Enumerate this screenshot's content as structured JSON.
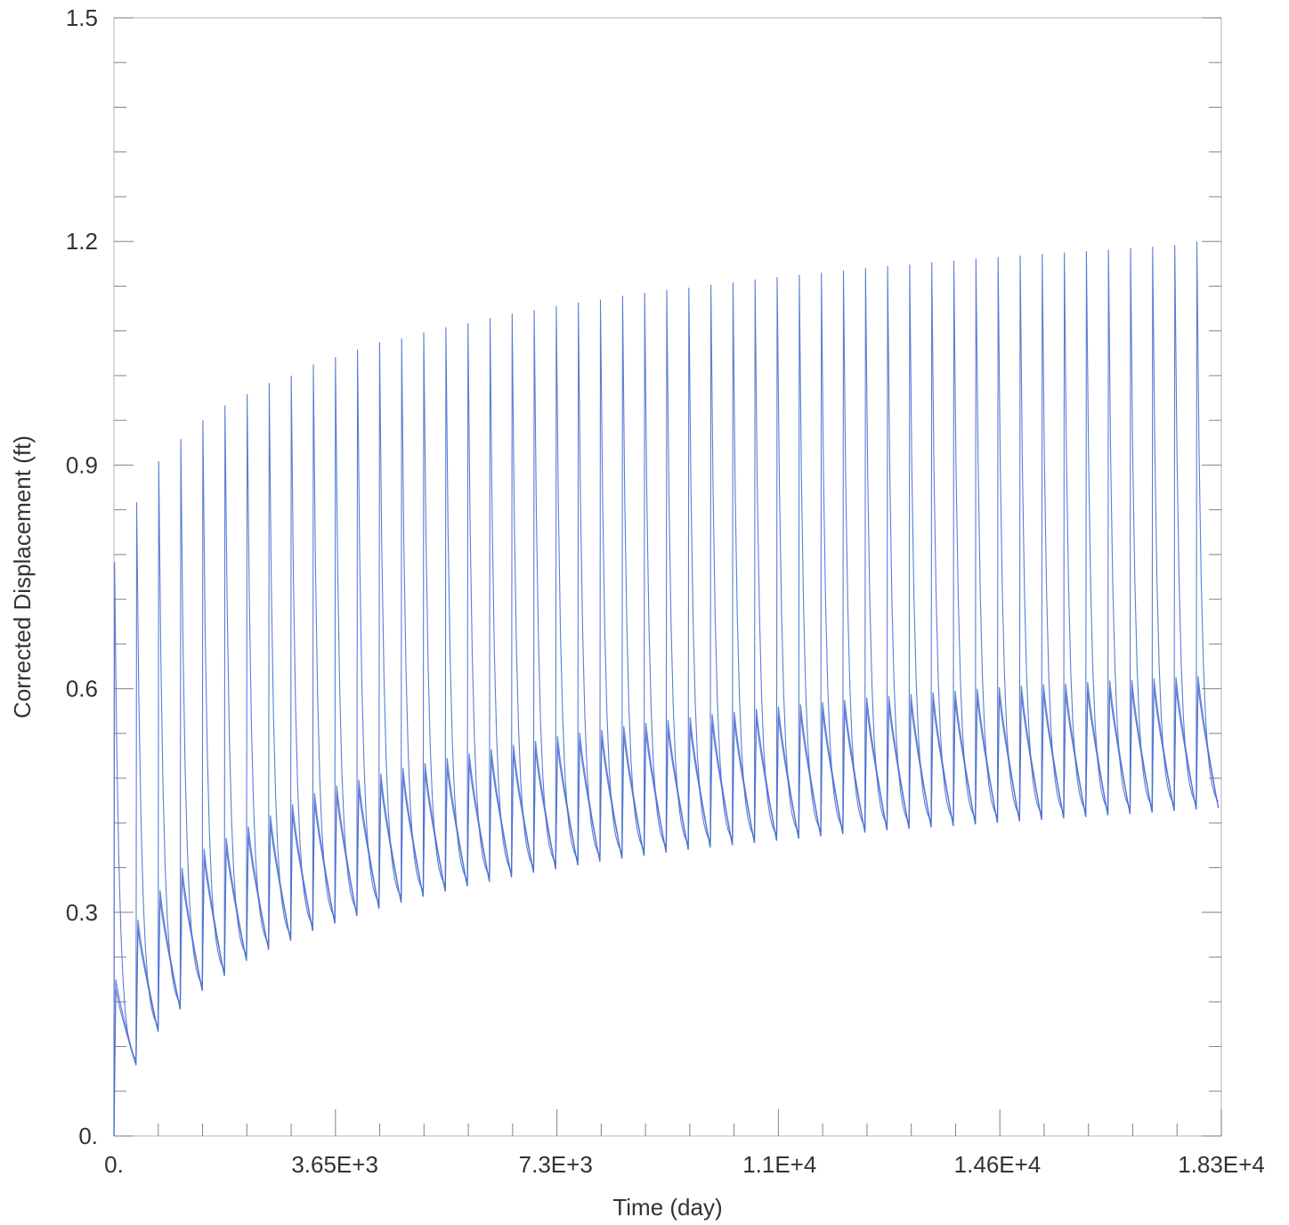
{
  "chart_data": {
    "type": "line",
    "title": "",
    "xlabel": "Time (day)",
    "ylabel": "Corrected Displacement (ft)",
    "xlim": [
      0,
      18300
    ],
    "ylim": [
      0,
      1.5
    ],
    "x_ticks": [
      "0.",
      "3.65E+3",
      "7.3E+3",
      "1.1E+4",
      "1.46E+4",
      "1.83E+4"
    ],
    "x_tick_values": [
      0,
      3650,
      7300,
      11000,
      14600,
      18300
    ],
    "y_ticks": [
      "0.",
      "0.3",
      "0.6",
      "0.9",
      "1.2",
      "1.5"
    ],
    "y_tick_values": [
      0,
      0.3,
      0.6,
      0.9,
      1.2,
      1.5
    ],
    "grid": false,
    "line_color": "#4a6fd0",
    "series": [
      {
        "period_days": 365,
        "cycles": 50,
        "peaks": [
          0.77,
          0.85,
          0.905,
          0.935,
          0.96,
          0.98,
          0.995,
          1.01,
          1.02,
          1.035,
          1.045,
          1.055,
          1.065,
          1.07,
          1.078,
          1.085,
          1.09,
          1.097,
          1.103,
          1.108,
          1.113,
          1.118,
          1.122,
          1.127,
          1.131,
          1.135,
          1.138,
          1.142,
          1.145,
          1.149,
          1.152,
          1.155,
          1.158,
          1.161,
          1.164,
          1.167,
          1.169,
          1.172,
          1.174,
          1.177,
          1.179,
          1.181,
          1.183,
          1.185,
          1.187,
          1.189,
          1.191,
          1.193,
          1.195,
          1.2
        ]
      },
      {
        "period_days": 365,
        "cycles": 50,
        "peaks": [
          0.21,
          0.29,
          0.33,
          0.36,
          0.385,
          0.4,
          0.415,
          0.43,
          0.445,
          0.46,
          0.47,
          0.478,
          0.486,
          0.494,
          0.5,
          0.507,
          0.513,
          0.519,
          0.525,
          0.53,
          0.536,
          0.541,
          0.545,
          0.55,
          0.554,
          0.558,
          0.562,
          0.566,
          0.569,
          0.573,
          0.576,
          0.579,
          0.582,
          0.585,
          0.588,
          0.59,
          0.593,
          0.595,
          0.597,
          0.6,
          0.602,
          0.604,
          0.606,
          0.607,
          0.609,
          0.611,
          0.612,
          0.614,
          0.615,
          0.617
        ],
        "troughs": [
          0.095,
          0.14,
          0.17,
          0.195,
          0.215,
          0.235,
          0.25,
          0.262,
          0.275,
          0.285,
          0.295,
          0.305,
          0.313,
          0.321,
          0.328,
          0.335,
          0.341,
          0.347,
          0.353,
          0.358,
          0.363,
          0.368,
          0.372,
          0.376,
          0.38,
          0.384,
          0.387,
          0.39,
          0.393,
          0.396,
          0.399,
          0.402,
          0.405,
          0.407,
          0.41,
          0.412,
          0.414,
          0.416,
          0.418,
          0.42,
          0.422,
          0.424,
          0.426,
          0.428,
          0.43,
          0.432,
          0.434,
          0.436,
          0.438,
          0.44
        ]
      }
    ]
  }
}
